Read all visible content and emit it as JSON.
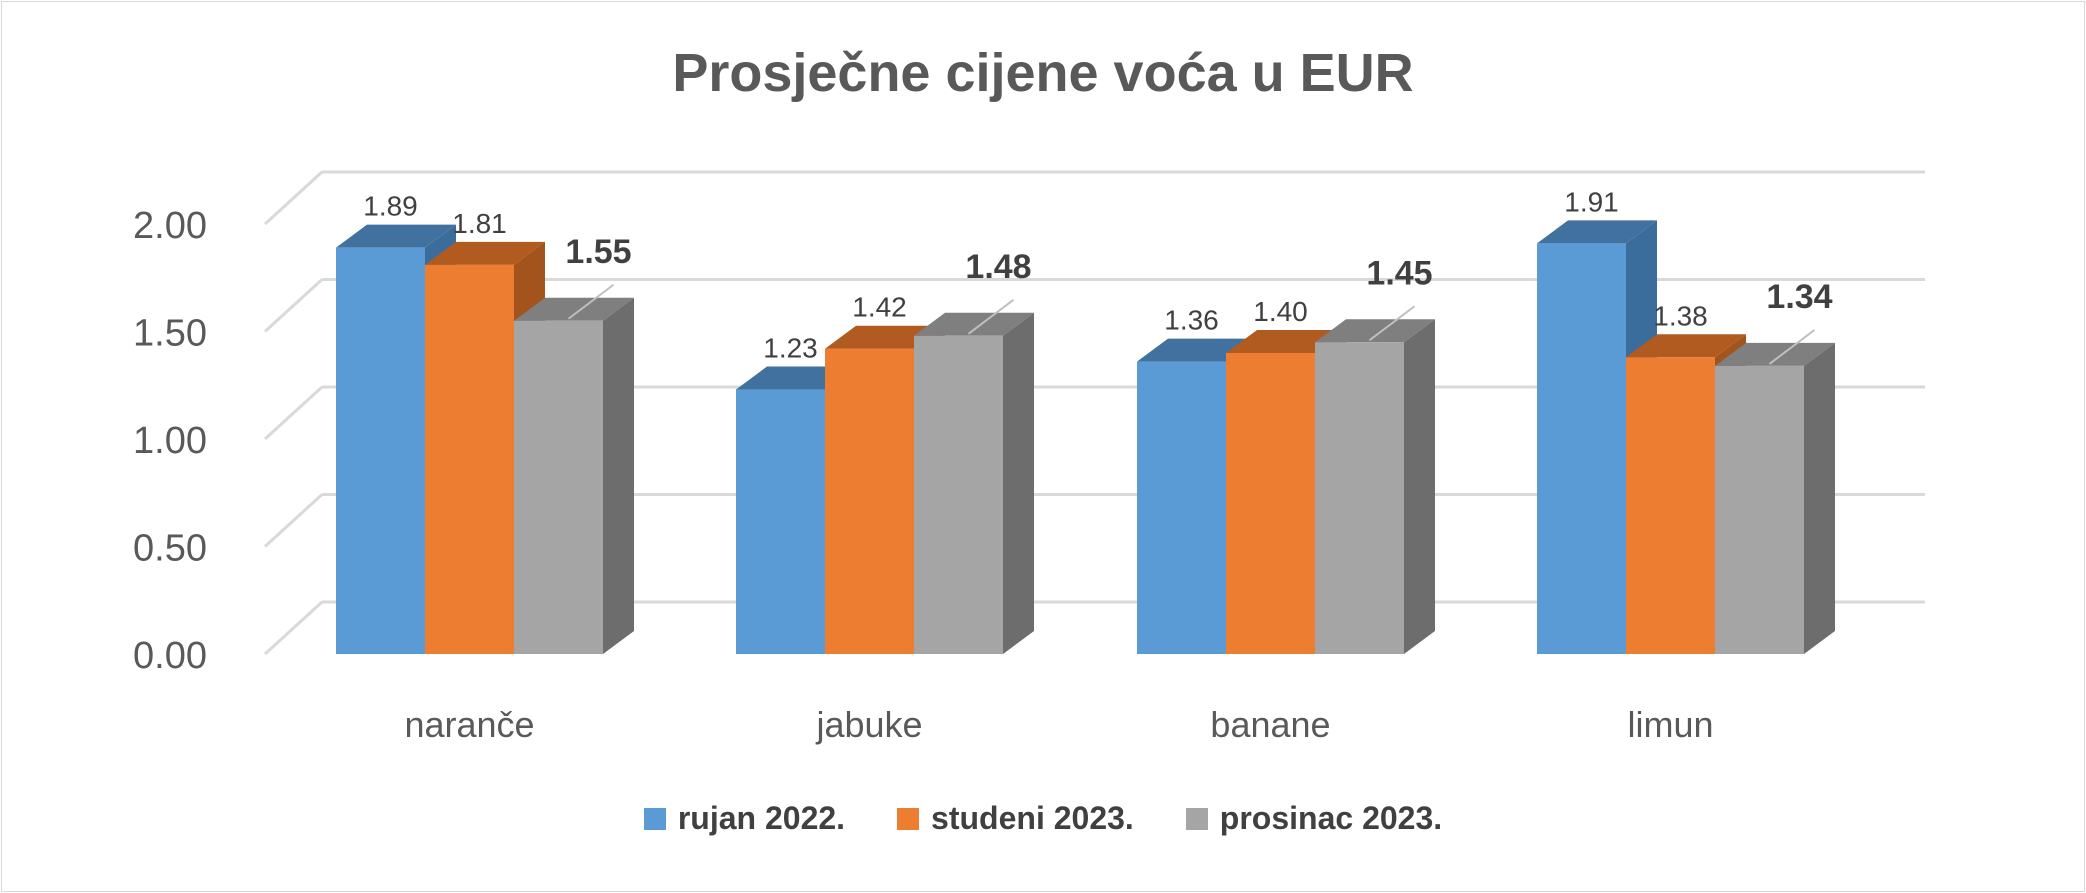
{
  "chart_data": {
    "type": "bar",
    "title": "Prosječne cijene voća u EUR",
    "categories": [
      "naranče",
      "jabuke",
      "banane",
      "limun"
    ],
    "series": [
      {
        "name": "rujan 2022.",
        "values": [
          1.89,
          1.23,
          1.36,
          1.91
        ],
        "labels": [
          "1.89",
          "1.23",
          "1.36",
          "1.91"
        ],
        "bold_labels": false,
        "color": "#5b9bd5",
        "side_color": "#3a6d9c",
        "top_color": "#41729f"
      },
      {
        "name": "studeni 2023.",
        "values": [
          1.81,
          1.42,
          1.4,
          1.38
        ],
        "labels": [
          "1.81",
          "1.42",
          "1.40",
          "1.38"
        ],
        "bold_labels": false,
        "color": "#ed7d31",
        "side_color": "#a3531c",
        "top_color": "#b25b20"
      },
      {
        "name": "prosinac 2023.",
        "values": [
          1.55,
          1.48,
          1.45,
          1.34
        ],
        "labels": [
          "1.55",
          "1.48",
          "1.45",
          "1.34"
        ],
        "bold_labels": true,
        "color": "#a5a5a5",
        "side_color": "#6d6d6d",
        "top_color": "#7f7f7f"
      }
    ],
    "ylim": [
      0,
      2.0
    ],
    "yticks": [
      "0.00",
      "0.50",
      "1.00",
      "1.50",
      "2.00"
    ],
    "grid": true,
    "legend_position": "bottom",
    "style": "3d-clustered-column"
  }
}
